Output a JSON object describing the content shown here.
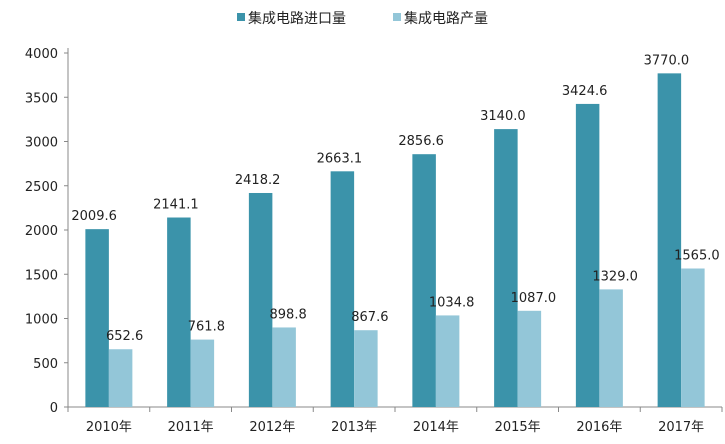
{
  "chart_data": {
    "type": "bar",
    "categories": [
      "2010年",
      "2011年",
      "2012年",
      "2013年",
      "2014年",
      "2015年",
      "2016年",
      "2017年"
    ],
    "series": [
      {
        "name": "集成电路进口量",
        "color": "#3b93aa",
        "values": [
          2009.6,
          2141.1,
          2418.2,
          2663.1,
          2856.6,
          3140.0,
          3424.6,
          3770.0
        ],
        "labels": [
          "2009.6",
          "2141.1",
          "2418.2",
          "2663.1",
          "2856.6",
          "3140.0",
          "3424.6",
          "3770.0"
        ]
      },
      {
        "name": "集成电路产量",
        "color": "#93c6d8",
        "values": [
          652.6,
          761.8,
          898.8,
          867.6,
          1034.8,
          1087.0,
          1329.0,
          1565.0
        ],
        "labels": [
          "652.6",
          "761.8",
          "898.8",
          "867.6",
          "1034.8",
          "1087.0",
          "1329.0",
          "1565.0"
        ]
      }
    ],
    "yticks": [
      "0",
      "500",
      "1000",
      "1500",
      "2000",
      "2500",
      "3000",
      "3500",
      "4000"
    ],
    "ylim": [
      0,
      4000
    ],
    "grid": false,
    "legend": "top-center",
    "title": "",
    "xlabel": "",
    "ylabel": ""
  }
}
